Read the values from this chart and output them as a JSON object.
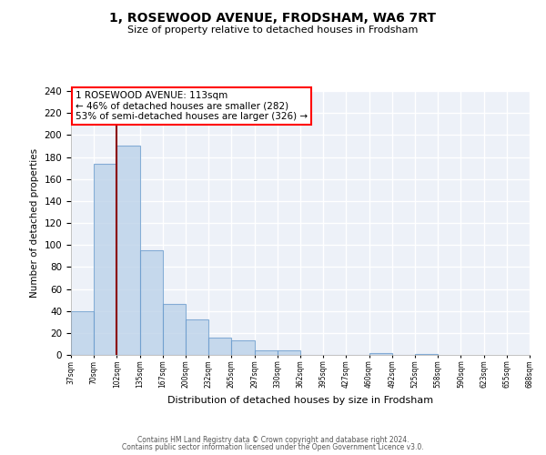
{
  "title": "1, ROSEWOOD AVENUE, FRODSHAM, WA6 7RT",
  "subtitle": "Size of property relative to detached houses in Frodsham",
  "xlabel": "Distribution of detached houses by size in Frodsham",
  "ylabel": "Number of detached properties",
  "bar_values": [
    40,
    174,
    190,
    95,
    46,
    32,
    16,
    13,
    4,
    4,
    0,
    0,
    0,
    2,
    0,
    1
  ],
  "bin_labels": [
    "37sqm",
    "70sqm",
    "102sqm",
    "135sqm",
    "167sqm",
    "200sqm",
    "232sqm",
    "265sqm",
    "297sqm",
    "330sqm",
    "362sqm",
    "395sqm",
    "427sqm",
    "460sqm",
    "492sqm",
    "525sqm",
    "558sqm",
    "590sqm",
    "623sqm",
    "655sqm",
    "688sqm"
  ],
  "bar_color": "#b8d0e8",
  "bar_edge_color": "#6699cc",
  "bar_alpha": 0.75,
  "ylim": [
    0,
    240
  ],
  "yticks": [
    0,
    20,
    40,
    60,
    80,
    100,
    120,
    140,
    160,
    180,
    200,
    220,
    240
  ],
  "red_line_bin_index": 2,
  "annotation_title": "1 ROSEWOOD AVENUE: 113sqm",
  "annotation_line1": "← 46% of detached houses are smaller (282)",
  "annotation_line2": "53% of semi-detached houses are larger (326) →",
  "footer1": "Contains HM Land Registry data © Crown copyright and database right 2024.",
  "footer2": "Contains public sector information licensed under the Open Government Licence v3.0.",
  "background_color": "#edf1f8",
  "grid_color": "#ffffff",
  "fig_bg_color": "#ffffff"
}
